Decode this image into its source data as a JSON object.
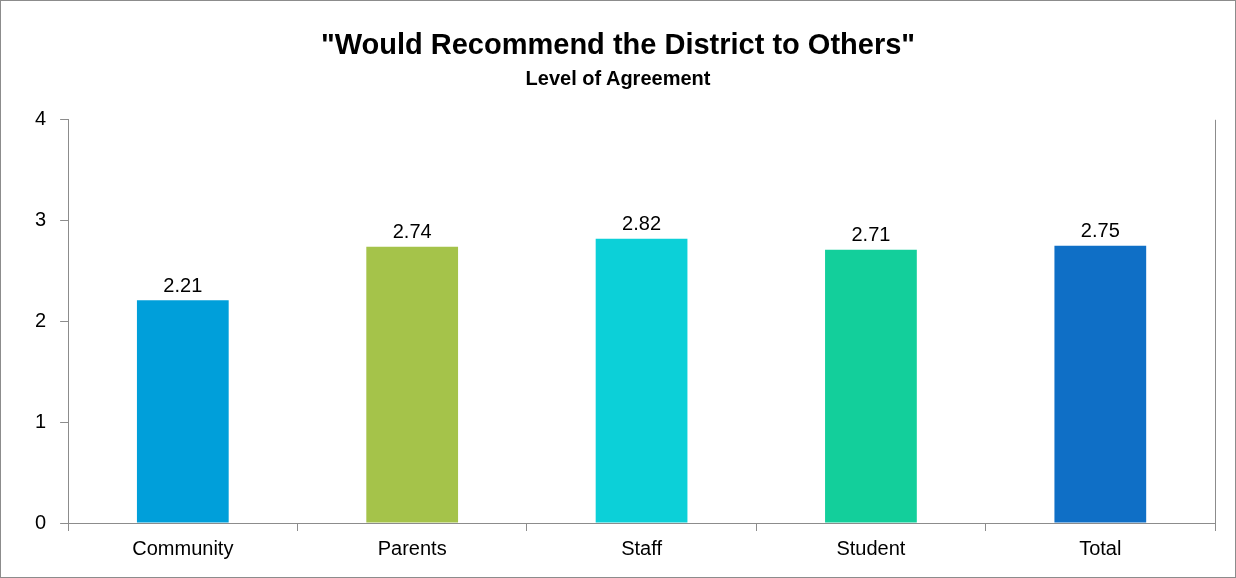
{
  "chart_data": {
    "type": "bar",
    "title": "\"Would Recommend the District to Others\"",
    "subtitle": "Level of Agreement",
    "categories": [
      "Community",
      "Parents",
      "Staff",
      "Student",
      "Total"
    ],
    "values": [
      2.21,
      2.74,
      2.82,
      2.71,
      2.75
    ],
    "colors": [
      "#009fda",
      "#a5c34a",
      "#0cd0d8",
      "#13cf9b",
      "#0f6fc6"
    ],
    "ylim": [
      0,
      4
    ],
    "yticks": [
      0,
      1,
      2,
      3,
      4
    ],
    "grid": false,
    "legend": false,
    "data_labels": true
  }
}
